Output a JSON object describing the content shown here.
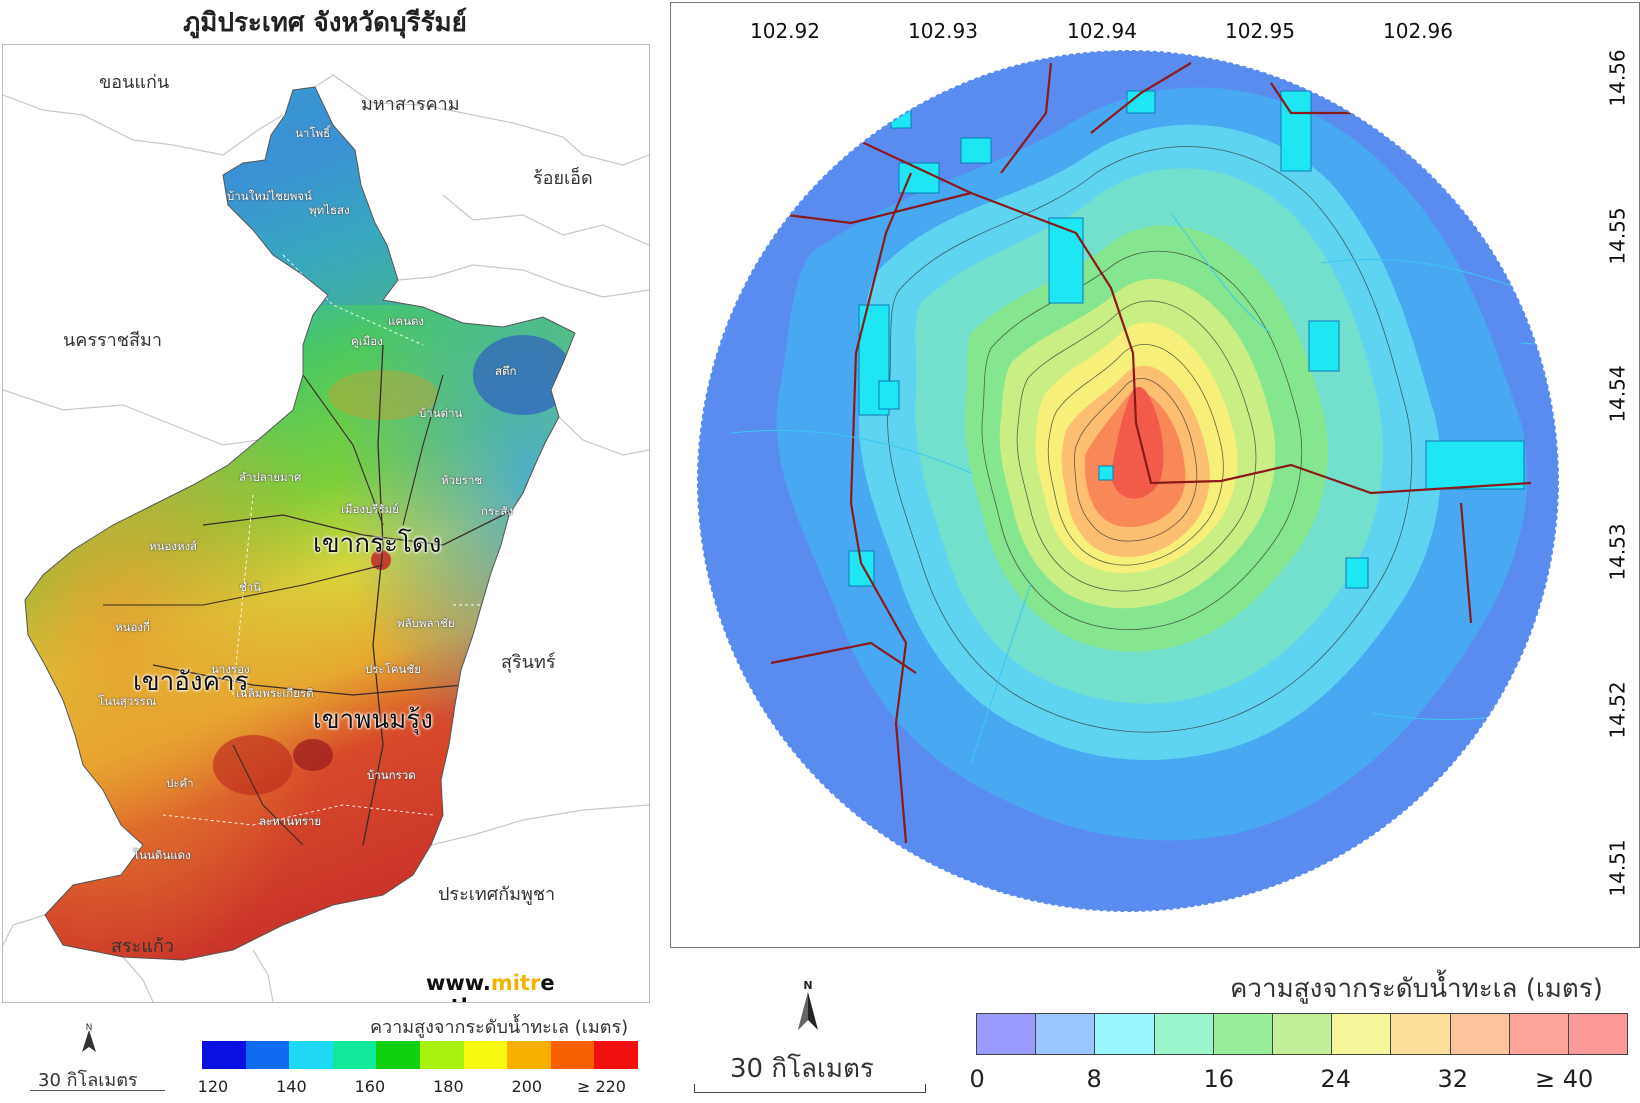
{
  "left_panel": {
    "title": "ภูมิประเทศ จังหวัดบุรีรัมย์",
    "provinces": {
      "khon_kaen": "ขอนแก่น",
      "maha_sarakham": "มหาสารคาม",
      "roi_et": "ร้อยเอ็ด",
      "nakhon_ratchasima": "นครราชสีมา",
      "surin": "สุรินทร์",
      "cambodia": "ประเทศกัมพูชา",
      "sa_kaeo": "สระแก้ว"
    },
    "districts": [
      "นาโพธิ์",
      "บ้านใหม่ไชยพจน์",
      "พุทไธสง",
      "แคนดง",
      "คูเมือง",
      "สตึก",
      "บ้านด่าน",
      "ลำปลายมาศ",
      "ห้วยราช",
      "เมืองบุรีรัมย์",
      "กระสัง",
      "หนองหงส์",
      "ชำนิ",
      "หนองกี่",
      "พลับพลาชัย",
      "นางรอง",
      "ประโคนชัย",
      "โนนสุวรรณ",
      "เฉลิมพระเกียรติ",
      "ปะคำ",
      "บ้านกรวด",
      "ละหานทราย",
      "โนนดินแดง"
    ],
    "peaks": {
      "khao_kradong": "เขากระโดง",
      "khao_angkhan": "เขาอังคาร",
      "khao_phanom_rung": "เขาพนมรุ้ง"
    },
    "website_prefix": "www.",
    "website_highlight": "mitr",
    "website_mid": "e",
    "website_suffix": "arth.org",
    "scale_label": "30 กิโลเมตร",
    "north_label": "N",
    "legend": {
      "title": "ความสูงจากระดับน้ำทะเล (เมตร)",
      "colors": [
        "#0a10e0",
        "#0f6cf0",
        "#1fd8f5",
        "#10e89a",
        "#10d010",
        "#a8f010",
        "#f8f810",
        "#f8b000",
        "#f86000",
        "#f01010"
      ],
      "ticks": [
        "120",
        "140",
        "160",
        "180",
        "200",
        "≥ 220"
      ]
    }
  },
  "right_panel": {
    "longitude_labels": [
      "102.92",
      "102.93",
      "102.94",
      "102.95",
      "102.96"
    ],
    "latitude_labels": [
      "14.56",
      "14.55",
      "14.54",
      "14.53",
      "14.52",
      "14.51"
    ],
    "scale_label": "30 กิโลเมตร",
    "north_label": "N",
    "legend": {
      "title": "ความสูงจากระดับน้ำทะเล (เมตร)",
      "colors": [
        "#9a9aff",
        "#9ac6ff",
        "#9af6ff",
        "#9af4cc",
        "#9aee9a",
        "#c2f09a",
        "#f6f69a",
        "#fce09a",
        "#fcc49a",
        "#fca49a",
        "#fc9a9a"
      ],
      "ticks": [
        "0",
        "8",
        "16",
        "24",
        "32",
        "≥  40"
      ]
    }
  }
}
